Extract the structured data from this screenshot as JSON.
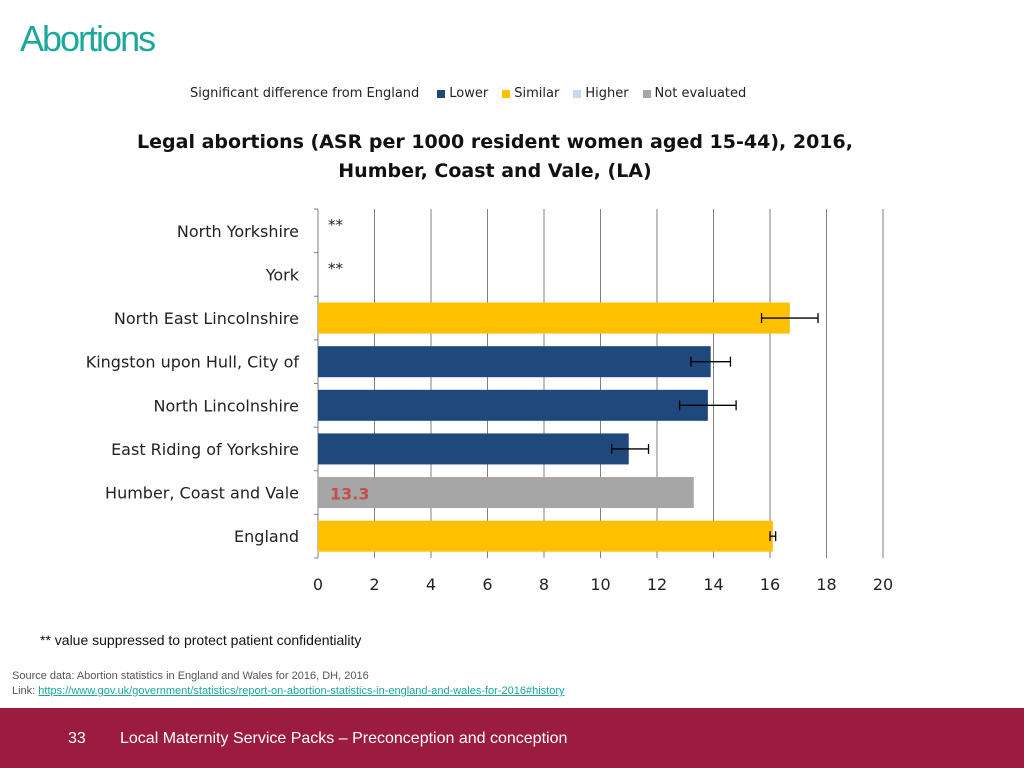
{
  "page_title": "Abortions",
  "legend": {
    "title": "Significant difference from England",
    "items": [
      {
        "label": "Lower",
        "color": "#1f497d"
      },
      {
        "label": "Similar",
        "color": "#ffc000"
      },
      {
        "label": "Higher",
        "color": "#c6d9f1"
      },
      {
        "label": "Not evaluated",
        "color": "#a6a6a6"
      }
    ]
  },
  "chart_data": {
    "type": "bar",
    "orientation": "horizontal",
    "title_line1": "Legal abortions (ASR per 1000 resident women aged 15-44), 2016,",
    "title_line2": "Humber, Coast and Vale, (LA)",
    "xlim": [
      0,
      20
    ],
    "xticks": [
      "0",
      "2",
      "4",
      "6",
      "8",
      "10",
      "12",
      "14",
      "16",
      "18",
      "20"
    ],
    "grid": true,
    "categories": [
      "North Yorkshire",
      "York",
      "North East Lincolnshire",
      "Kingston upon Hull, City of",
      "North Lincolnshire",
      "East Riding of Yorkshire",
      "Humber, Coast and Vale",
      "England"
    ],
    "values": [
      null,
      null,
      16.7,
      13.9,
      13.8,
      11.0,
      13.3,
      16.1
    ],
    "ci_low": [
      null,
      null,
      15.7,
      13.2,
      12.8,
      10.4,
      null,
      16.0
    ],
    "ci_high": [
      null,
      null,
      17.7,
      14.6,
      14.8,
      11.7,
      null,
      16.2
    ],
    "status": [
      "suppressed",
      "suppressed",
      "Similar",
      "Lower",
      "Lower",
      "Lower",
      "Not evaluated",
      "Similar"
    ],
    "suppressed_marker": "**",
    "data_label": "13.3",
    "data_label_color": "#c0504d"
  },
  "footnote": "** value suppressed to protect patient confidentiality",
  "source": {
    "line1": "Source data: Abortion statistics in England and Wales for 2016, DH, 2016",
    "link_prefix": "Link: ",
    "link_text": "https://www.gov.uk/government/statistics/report-on-abortion-statistics-in-england-and-wales-for-2016#history"
  },
  "footer": {
    "page_number": "33",
    "text": "Local Maternity Service Packs – Preconception and conception",
    "color": "#9c1c40"
  }
}
